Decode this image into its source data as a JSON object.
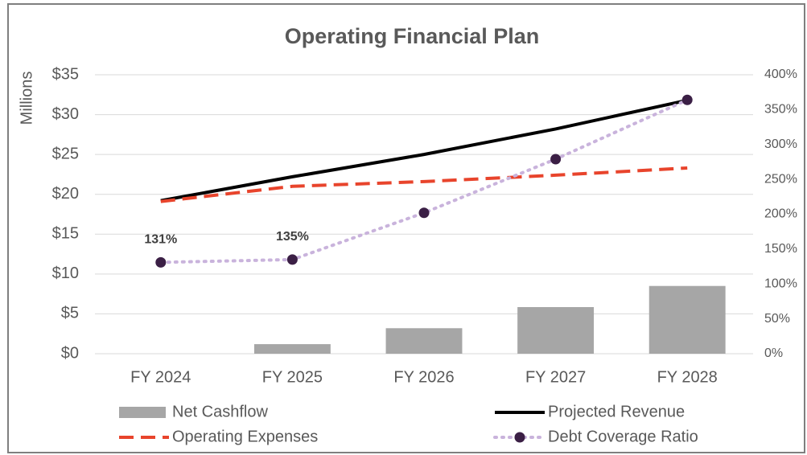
{
  "chart_data": {
    "type": "combo",
    "title": "Operating Financial Plan",
    "y_label": "Millions",
    "categories": [
      "FY 2024",
      "FY 2025",
      "FY 2026",
      "FY 2027",
      "FY 2028"
    ],
    "ylim": [
      0,
      35
    ],
    "yticks": [
      {
        "value": 0,
        "label": "$0"
      },
      {
        "value": 5,
        "label": "$5"
      },
      {
        "value": 10,
        "label": "$10"
      },
      {
        "value": 15,
        "label": "$15"
      },
      {
        "value": 20,
        "label": "$20"
      },
      {
        "value": 25,
        "label": "$25"
      },
      {
        "value": 30,
        "label": "$30"
      },
      {
        "value": 35,
        "label": "$35"
      }
    ],
    "y2lim": [
      0,
      400
    ],
    "y2ticks": [
      {
        "value": 0,
        "label": "0%"
      },
      {
        "value": 50,
        "label": "50%"
      },
      {
        "value": 100,
        "label": "100%"
      },
      {
        "value": 150,
        "label": "150%"
      },
      {
        "value": 200,
        "label": "200%"
      },
      {
        "value": 250,
        "label": "250%"
      },
      {
        "value": 300,
        "label": "300%"
      },
      {
        "value": 350,
        "label": "350%"
      },
      {
        "value": 400,
        "label": "400%"
      }
    ],
    "grid": true,
    "legend": "bottom",
    "series": [
      {
        "name": "Net Cashflow",
        "type": "bar",
        "color": "#a6a6a6",
        "values": [
          0,
          1.2,
          3.2,
          5.85,
          8.5
        ]
      },
      {
        "name": "Projected Revenue",
        "type": "line",
        "color": "#000000",
        "style": "solid",
        "values": [
          19.2,
          22.2,
          25.0,
          28.2,
          31.8
        ]
      },
      {
        "name": "Operating Expenses",
        "type": "line",
        "color": "#e8442c",
        "style": "dashed",
        "values": [
          19.1,
          21.0,
          21.6,
          22.4,
          23.3
        ]
      },
      {
        "name": "Debt Coverage Ratio",
        "type": "line",
        "axis": "y2",
        "color": "#c9b3dc",
        "marker_color": "#3b1f45",
        "style": "dotted",
        "marker": "circle",
        "values": [
          131,
          135,
          202,
          279,
          364
        ],
        "value_labels": [
          "131%",
          "135%",
          null,
          null,
          null
        ]
      }
    ]
  }
}
